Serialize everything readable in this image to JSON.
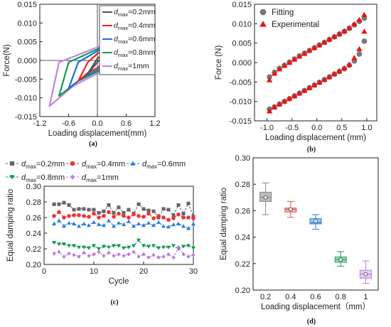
{
  "chart_data": [
    {
      "panel": "(a)",
      "type": "line",
      "xlabel": "Loading displacement(mm)",
      "ylabel": "Force(N)",
      "xlim": [
        -1.2,
        1.2
      ],
      "ylim": [
        -0.015,
        0.015
      ],
      "xticks": [
        "-1.2",
        "-0.6",
        "0.0",
        "0.6",
        "1.2"
      ],
      "xtick_values": [
        -1.2,
        -0.6,
        0.0,
        0.6,
        1.2
      ],
      "yticks": [
        "0.015",
        "0.010",
        "0.005",
        "0.000",
        "-0.005",
        "-0.010",
        "-0.015"
      ],
      "ytick_values": [
        0.015,
        0.01,
        0.005,
        0.0,
        -0.005,
        -0.01,
        -0.015
      ],
      "legend_position": "top-right",
      "series": [
        {
          "name": "dmax=0.2mm",
          "legend_main": "d",
          "legend_sub": "max",
          "legend_tail": "=0.2mm",
          "color": "#555555",
          "dmax": 0.2,
          "upper": [
            [
              -0.2,
              -0.0035
            ],
            [
              0.0,
              0.0005
            ],
            [
              0.1,
              0.0015
            ],
            [
              0.2,
              0.0037
            ]
          ],
          "lower": [
            [
              0.2,
              0.0037
            ],
            [
              0.15,
              0.0015
            ],
            [
              0.0,
              -0.0005
            ],
            [
              -0.2,
              -0.0035
            ]
          ]
        },
        {
          "name": "dmax=0.4mm",
          "legend_main": "d",
          "legend_sub": "max",
          "legend_tail": "=0.4mm",
          "color": "#ee2222",
          "dmax": 0.4,
          "upper": [
            [
              -0.4,
              -0.0055
            ],
            [
              -0.2,
              -0.0005
            ],
            [
              0.0,
              0.0018
            ],
            [
              0.2,
              0.0033
            ],
            [
              0.4,
              0.0056
            ]
          ],
          "lower": [
            [
              0.4,
              0.0056
            ],
            [
              0.3,
              0.0012
            ],
            [
              0.0,
              -0.002
            ],
            [
              -0.2,
              -0.0033
            ],
            [
              -0.4,
              -0.0055
            ]
          ]
        },
        {
          "name": "dmax=0.6mm",
          "legend_main": "d",
          "legend_sub": "max",
          "legend_tail": "=0.6mm",
          "color": "#1a6fd6",
          "dmax": 0.6,
          "upper": [
            [
              -0.6,
              -0.0075
            ],
            [
              -0.4,
              -0.0005
            ],
            [
              0.0,
              0.0025
            ],
            [
              0.3,
              0.0045
            ],
            [
              0.6,
              0.0075
            ]
          ],
          "lower": [
            [
              0.6,
              0.0075
            ],
            [
              0.45,
              0.0005
            ],
            [
              0.0,
              -0.0025
            ],
            [
              -0.3,
              -0.0045
            ],
            [
              -0.6,
              -0.0075
            ]
          ]
        },
        {
          "name": "dmax=0.8mm",
          "legend_main": "d",
          "legend_sub": "max",
          "legend_tail": "=0.8mm",
          "color": "#109a5a",
          "dmax": 0.8,
          "upper": [
            [
              -0.8,
              -0.0095
            ],
            [
              -0.6,
              -0.0005
            ],
            [
              0.0,
              0.003
            ],
            [
              0.4,
              0.0055
            ],
            [
              0.8,
              0.0095
            ]
          ],
          "lower": [
            [
              0.8,
              0.0095
            ],
            [
              0.6,
              0.0005
            ],
            [
              0.0,
              -0.003
            ],
            [
              -0.4,
              -0.0055
            ],
            [
              -0.8,
              -0.0095
            ]
          ]
        },
        {
          "name": "dmax=1mm",
          "legend_main": "d",
          "legend_sub": "max",
          "legend_tail": "=1mm",
          "color": "#c084e0",
          "dmax": 1.0,
          "upper": [
            [
              -1.0,
              -0.0122
            ],
            [
              -0.8,
              -0.0005
            ],
            [
              0.0,
              0.0035
            ],
            [
              0.5,
              0.0068
            ],
            [
              1.0,
              0.012
            ]
          ],
          "lower": [
            [
              1.0,
              0.012
            ],
            [
              0.8,
              0.0005
            ],
            [
              0.0,
              -0.0035
            ],
            [
              -0.5,
              -0.0068
            ],
            [
              -1.0,
              -0.0122
            ]
          ]
        }
      ]
    },
    {
      "panel": "(b)",
      "type": "scatter",
      "xlabel": "Loading displacement (mm)",
      "ylabel": "Force (N)",
      "xlim": [
        -1.25,
        1.2
      ],
      "ylim": [
        -0.015,
        0.015
      ],
      "xticks": [
        "-1.0",
        "-0.5",
        "0.0",
        "0.5",
        "1.0"
      ],
      "xtick_values": [
        -1.0,
        -0.5,
        0.0,
        0.5,
        1.0
      ],
      "yticks": [
        "0.015",
        "0.010",
        "0.005",
        "0.000",
        "-0.005",
        "-0.010",
        "-0.015"
      ],
      "ytick_values": [
        0.015,
        0.01,
        0.005,
        0.0,
        -0.005,
        -0.01,
        -0.015
      ],
      "legend_position": "top-left",
      "series": [
        {
          "name": "Fitting",
          "color": "#777777",
          "marker": "circle",
          "x": [
            -0.95,
            -0.85,
            -0.75,
            -0.65,
            -0.55,
            -0.45,
            -0.35,
            -0.25,
            -0.15,
            -0.05,
            0.05,
            0.15,
            0.25,
            0.35,
            0.45,
            0.55,
            0.65,
            0.75,
            0.85,
            0.95,
            0.95,
            0.85,
            0.75,
            0.65,
            0.55,
            0.45,
            0.35,
            0.25,
            0.15,
            0.05,
            -0.05,
            -0.15,
            -0.25,
            -0.35,
            -0.45,
            -0.55,
            -0.65,
            -0.75,
            -0.85,
            -0.95
          ],
          "y": [
            -0.0037,
            -0.0025,
            -0.0015,
            -0.0007,
            0.0001,
            0.0009,
            0.0017,
            0.0024,
            0.0031,
            0.0038,
            0.0045,
            0.0052,
            0.0059,
            0.0066,
            0.0073,
            0.008,
            0.0088,
            0.0097,
            0.0106,
            0.0114,
            0.0055,
            0.0022,
            0.0004,
            -0.0007,
            -0.0016,
            -0.0023,
            -0.003,
            -0.0037,
            -0.0044,
            -0.0051,
            -0.0058,
            -0.0065,
            -0.0072,
            -0.0079,
            -0.0086,
            -0.0093,
            -0.01,
            -0.0107,
            -0.0114,
            -0.012
          ]
        },
        {
          "name": "Experimental",
          "color": "#ee1111",
          "marker": "triangle",
          "x": [
            -0.95,
            -0.85,
            -0.75,
            -0.65,
            -0.55,
            -0.45,
            -0.35,
            -0.25,
            -0.15,
            -0.05,
            0.05,
            0.15,
            0.25,
            0.35,
            0.45,
            0.55,
            0.65,
            0.75,
            0.85,
            0.95,
            0.95,
            0.85,
            0.75,
            0.65,
            0.55,
            0.45,
            0.35,
            0.25,
            0.15,
            0.05,
            -0.05,
            -0.15,
            -0.25,
            -0.35,
            -0.45,
            -0.55,
            -0.65,
            -0.75,
            -0.85,
            -0.95
          ],
          "y": [
            -0.0045,
            -0.0028,
            -0.0017,
            -0.0008,
            0.0,
            0.0008,
            0.0016,
            0.0023,
            0.0031,
            0.0038,
            0.0045,
            0.0052,
            0.006,
            0.0067,
            0.0074,
            0.0081,
            0.0089,
            0.0099,
            0.011,
            0.0123,
            0.008,
            0.0035,
            0.0012,
            -0.0005,
            -0.0014,
            -0.0022,
            -0.0029,
            -0.0037,
            -0.0044,
            -0.0051,
            -0.0058,
            -0.0065,
            -0.0072,
            -0.0079,
            -0.0086,
            -0.0093,
            -0.01,
            -0.0107,
            -0.0115,
            -0.0125
          ]
        }
      ]
    },
    {
      "panel": "(c)",
      "type": "line",
      "xlabel": "Cycle",
      "ylabel": "Equal damping ratio",
      "xlim": [
        0,
        30
      ],
      "ylim": [
        0.2,
        0.3
      ],
      "xticks": [
        "0",
        "10",
        "20",
        "30"
      ],
      "xtick_values": [
        0,
        10,
        20,
        30
      ],
      "yticks": [
        "0.30",
        "0.28",
        "0.26",
        "0.24",
        "0.22",
        "0.20"
      ],
      "ytick_values": [
        0.3,
        0.28,
        0.26,
        0.24,
        0.22,
        0.2
      ],
      "legend_position": "top",
      "x": [
        2,
        3,
        4,
        5,
        6,
        7,
        8,
        9,
        10,
        11,
        12,
        13,
        14,
        15,
        16,
        17,
        18,
        19,
        20,
        21,
        22,
        23,
        24,
        25,
        26,
        27,
        28,
        29,
        30
      ],
      "series": [
        {
          "name": "dmax=0.2mm",
          "legend_main": "d",
          "legend_sub": "max",
          "legend_tail": "=0.2mm",
          "color": "#666666",
          "marker": "square",
          "values": [
            0.277,
            0.277,
            0.279,
            0.276,
            0.27,
            0.271,
            0.271,
            0.27,
            0.27,
            0.266,
            0.268,
            0.276,
            0.266,
            0.273,
            0.266,
            0.27,
            0.265,
            0.277,
            0.271,
            0.269,
            0.268,
            0.26,
            0.271,
            0.27,
            0.263,
            0.276,
            0.265,
            0.278,
            0.261
          ]
        },
        {
          "name": "dmax=0.4mm",
          "legend_main": "d",
          "legend_sub": "max",
          "legend_tail": "=0.4mm",
          "color": "#ee3333",
          "marker": "circle",
          "values": [
            0.262,
            0.267,
            0.26,
            0.262,
            0.263,
            0.263,
            0.262,
            0.261,
            0.265,
            0.26,
            0.262,
            0.267,
            0.261,
            0.265,
            0.262,
            0.26,
            0.264,
            0.262,
            0.261,
            0.265,
            0.259,
            0.262,
            0.26,
            0.257,
            0.259,
            0.264,
            0.26,
            0.26,
            0.259
          ]
        },
        {
          "name": "dmax=0.6mm",
          "legend_main": "d",
          "legend_sub": "max",
          "legend_tail": "=0.6mm",
          "color": "#2a7fd6",
          "marker": "triangle",
          "values": [
            0.252,
            0.256,
            0.249,
            0.253,
            0.252,
            0.249,
            0.252,
            0.25,
            0.254,
            0.251,
            0.25,
            0.256,
            0.249,
            0.253,
            0.251,
            0.255,
            0.249,
            0.252,
            0.25,
            0.253,
            0.25,
            0.254,
            0.249,
            0.248,
            0.251,
            0.252,
            0.249,
            0.246,
            0.252
          ]
        },
        {
          "name": "dmax=0.8mm",
          "legend_main": "d",
          "legend_sub": "max",
          "legend_tail": "=0.8mm",
          "color": "#119a55",
          "marker": "triangle-down",
          "values": [
            0.228,
            0.226,
            0.226,
            0.224,
            0.224,
            0.222,
            0.222,
            0.221,
            0.224,
            0.22,
            0.223,
            0.222,
            0.224,
            0.224,
            0.221,
            0.222,
            0.224,
            0.231,
            0.224,
            0.223,
            0.224,
            0.221,
            0.222,
            0.222,
            0.224,
            0.22,
            0.223,
            0.224,
            0.221
          ]
        },
        {
          "name": "dmax=1mm",
          "legend_main": "d",
          "legend_sub": "max",
          "legend_tail": "=1mm",
          "color": "#b77cdf",
          "marker": "diamond",
          "values": [
            0.214,
            0.216,
            0.21,
            0.214,
            0.212,
            0.21,
            0.215,
            0.211,
            0.213,
            0.216,
            0.211,
            0.215,
            0.211,
            0.213,
            0.211,
            0.213,
            0.216,
            0.21,
            0.213,
            0.209,
            0.212,
            0.209,
            0.21,
            0.213,
            0.209,
            0.222,
            0.213,
            0.21,
            0.212
          ]
        }
      ]
    },
    {
      "panel": "(d)",
      "type": "box",
      "xlabel": "Loading displacement（mm）",
      "ylabel": "Equal damping ratio",
      "ylim": [
        0.2,
        0.3
      ],
      "yticks": [
        "0.30",
        "0.28",
        "0.26",
        "0.24",
        "0.22",
        "0.20"
      ],
      "ytick_values": [
        0.3,
        0.28,
        0.26,
        0.24,
        0.22,
        0.2
      ],
      "categories": [
        "0.2",
        "0.4",
        "0.6",
        "0.8",
        "1"
      ],
      "boxes": [
        {
          "category": "0.2",
          "color": "#888888",
          "fill": "#bbbbbb",
          "whisker_low": 0.257,
          "q1": 0.267,
          "median": 0.27,
          "q3": 0.274,
          "whisker_high": 0.281,
          "mean": 0.27
        },
        {
          "category": "0.4",
          "color": "#e05555",
          "fill": "#f6b8b8",
          "whisker_low": 0.255,
          "q1": 0.259,
          "median": 0.261,
          "q3": 0.262,
          "whisker_high": 0.267,
          "mean": 0.261
        },
        {
          "category": "0.6",
          "color": "#2a7fd6",
          "fill": "#9cc8f0",
          "whisker_low": 0.246,
          "q1": 0.25,
          "median": 0.251,
          "q3": 0.254,
          "whisker_high": 0.257,
          "mean": 0.252
        },
        {
          "category": "0.8",
          "color": "#1aa060",
          "fill": "#9fe0c0",
          "whisker_low": 0.218,
          "q1": 0.221,
          "median": 0.223,
          "q3": 0.225,
          "whisker_high": 0.229,
          "mean": 0.223
        },
        {
          "category": "1",
          "color": "#b77cdf",
          "fill": "#e6ccf5",
          "whisker_low": 0.205,
          "q1": 0.209,
          "median": 0.212,
          "q3": 0.215,
          "whisker_high": 0.222,
          "mean": 0.212
        }
      ]
    }
  ]
}
